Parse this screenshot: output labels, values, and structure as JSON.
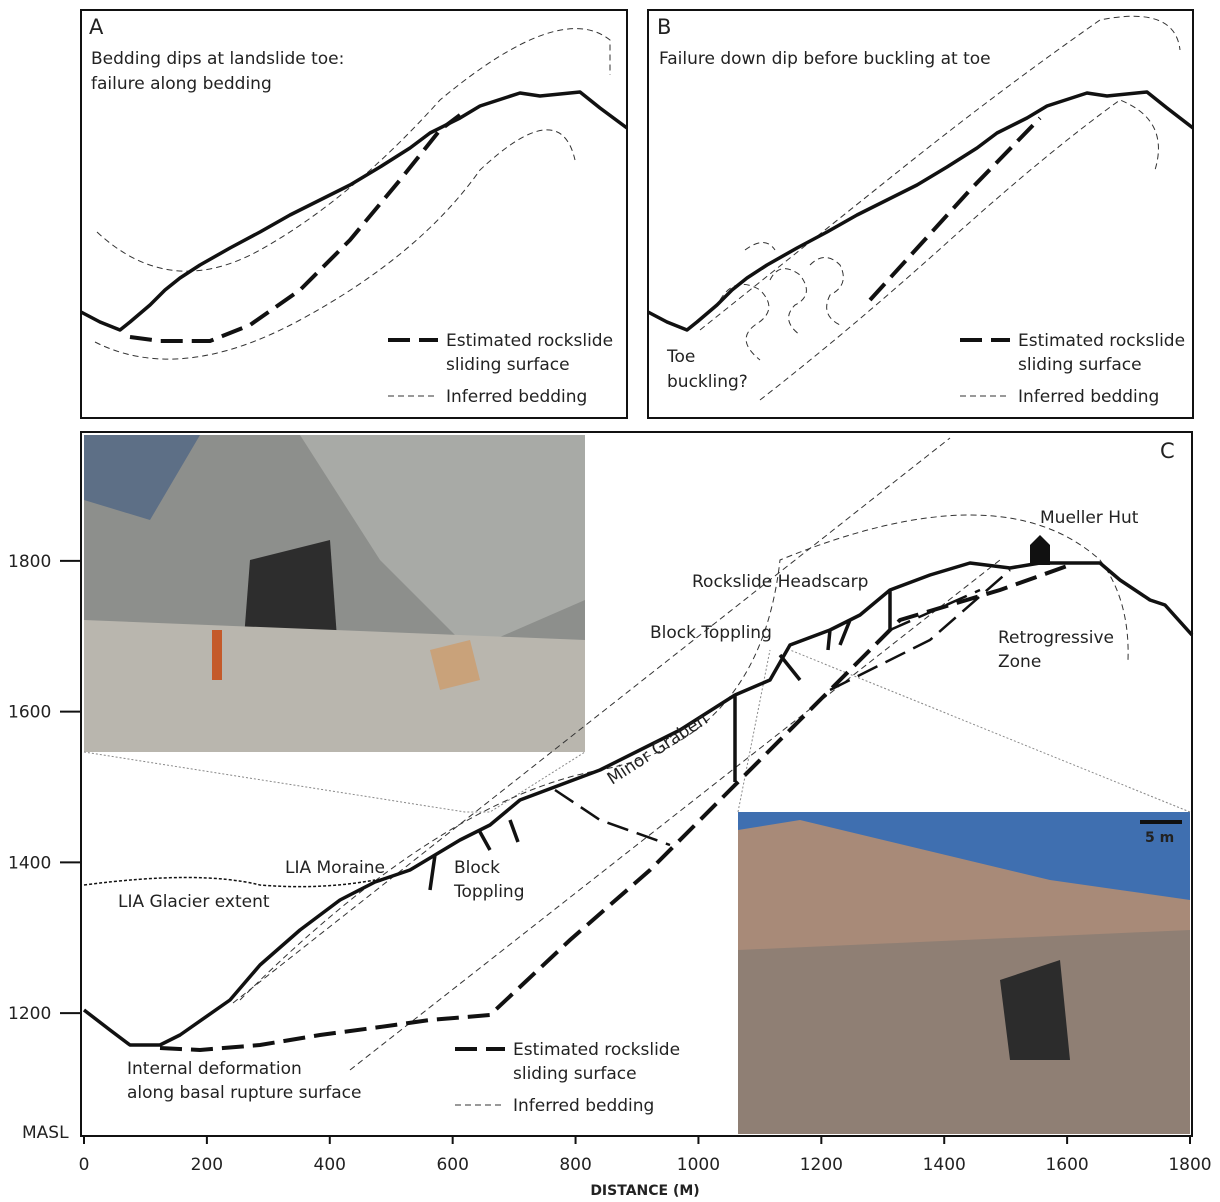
{
  "panel_a": {
    "label": "A",
    "title_lines": [
      "Bedding dips at landslide toe:",
      "failure along bedding"
    ],
    "legend": {
      "sliding": [
        "Estimated rockslide",
        "sliding surface"
      ],
      "bedding": "Inferred bedding"
    }
  },
  "panel_b": {
    "label": "B",
    "title_lines": [
      "Failure down dip before buckling at toe"
    ],
    "annotation": [
      "Toe",
      "buckling?"
    ],
    "legend": {
      "sliding": [
        "Estimated rockslide",
        "sliding surface"
      ],
      "bedding": "Inferred bedding"
    }
  },
  "panel_c": {
    "label": "C",
    "x_axis": {
      "title": "DISTANCE (M)",
      "lim": [
        0,
        1800
      ],
      "ticks": [
        0,
        200,
        400,
        600,
        800,
        1000,
        1200,
        1400,
        1600,
        1800
      ]
    },
    "y_axis": {
      "title": "MASL",
      "lim": [
        1037,
        1971
      ],
      "ticks": [
        1200,
        1400,
        1600,
        1800
      ]
    },
    "annotations": {
      "hut": "Mueller Hut",
      "headscarp": "Rockslide Headscarp",
      "toppling_upper": "Block Toppling",
      "retrogressive": [
        "Retrogressive",
        "Zone"
      ],
      "graben": "Minor Graben",
      "moraine": "LIA Moraine",
      "glacier": "LIA Glacier extent",
      "toppling_lower": [
        "Block",
        "Toppling"
      ],
      "deformation": [
        "Internal deformation",
        "along basal rupture surface"
      ],
      "scale": "5 m"
    },
    "legend": {
      "sliding": [
        "Estimated rockslide",
        "sliding surface"
      ],
      "bedding": "Inferred bedding"
    }
  }
}
